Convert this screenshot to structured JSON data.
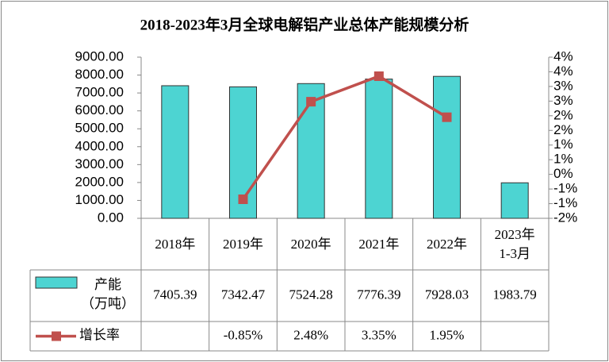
{
  "chart_data": {
    "type": "bar",
    "title": "2018-2023年3月全球电解铝产业总体产能规模分析",
    "categories": [
      "2018年",
      "2019年",
      "2020年",
      "2021年",
      "2022年",
      "2023年\n1-3月"
    ],
    "series": [
      {
        "name": "产能\n（万吨）",
        "type": "bar",
        "color": "#4dd4d2",
        "values": [
          7405.39,
          7342.47,
          7524.28,
          7776.39,
          7928.03,
          1983.79
        ]
      },
      {
        "name": "增长率",
        "type": "line",
        "axis": "y2",
        "color": "#c0504d",
        "values": [
          null,
          -0.85,
          2.48,
          3.35,
          1.95,
          null
        ],
        "value_labels": [
          null,
          "-0.85%",
          "2.48%",
          "3.35%",
          "1.95%",
          null
        ]
      }
    ],
    "ylim": [
      0,
      9000
    ],
    "yticks": [
      {
        "value": 0,
        "label": "0.00"
      },
      {
        "value": 1000,
        "label": "1000.00"
      },
      {
        "value": 2000,
        "label": "2000.00"
      },
      {
        "value": 3000,
        "label": "3000.00"
      },
      {
        "value": 4000,
        "label": "4000.00"
      },
      {
        "value": 5000,
        "label": "5000.00"
      },
      {
        "value": 6000,
        "label": "6000.00"
      },
      {
        "value": 7000,
        "label": "7000.00"
      },
      {
        "value": 8000,
        "label": "8000.00"
      },
      {
        "value": 9000,
        "label": "9000.00"
      }
    ],
    "y2lim": [
      -1.5,
      4
    ],
    "y2ticks": [
      {
        "value": -1.5,
        "label": "-2%"
      },
      {
        "value": -1,
        "label": "-1%"
      },
      {
        "value": -0.5,
        "label": "-1%"
      },
      {
        "value": 0,
        "label": "0%"
      },
      {
        "value": 0.5,
        "label": "1%"
      },
      {
        "value": 1,
        "label": "1%"
      },
      {
        "value": 1.5,
        "label": "2%"
      },
      {
        "value": 2,
        "label": "2%"
      },
      {
        "value": 2.5,
        "label": "3%"
      },
      {
        "value": 3,
        "label": "3%"
      },
      {
        "value": 3.5,
        "label": "4%"
      },
      {
        "value": 4,
        "label": "4%"
      }
    ]
  }
}
